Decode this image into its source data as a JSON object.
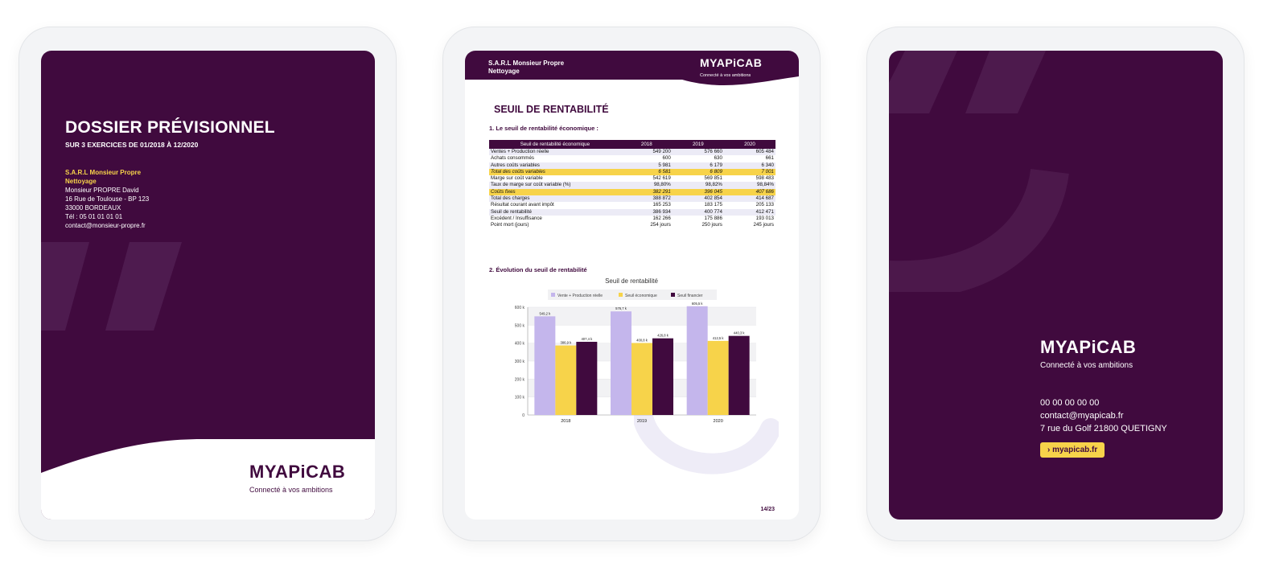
{
  "brand": {
    "logo_text": "MYAPiCAB",
    "tagline": "Connecté à vos ambitions",
    "colors": {
      "primary": "#400a3e",
      "accent": "#f7d34a",
      "lavender": "#c4b6ec"
    }
  },
  "cover": {
    "title": "DOSSIER PRÉVISIONNEL",
    "subtitle": "SUR 3 EXERCICES DE 01/2018 À 12/2020",
    "company_line1": "S.A.R.L Monsieur Propre",
    "company_line2": "Nettoyage",
    "contact_name": "Monsieur PROPRE David",
    "address1": "16 Rue de Toulouse - BP 123",
    "address2": "33000 BORDEAUX",
    "phone": "Tél : 05 01 01 01 01",
    "email": "contact@monsieur-propre.fr"
  },
  "report": {
    "header_company1": "S.A.R.L Monsieur Propre",
    "header_company2": "Nettoyage",
    "section_title": "SEUIL DE RENTABILITÉ",
    "heading1": "1.  Le seuil de rentabilité économique :",
    "heading2": "2.  Évolution du seuil de rentabilité",
    "page_number": "14/23",
    "table": {
      "headers": [
        "Seuil de rentabilité économique",
        "2018",
        "2019",
        "2020"
      ],
      "rows": [
        {
          "label": "Ventes + Production réelle",
          "v": [
            "549 200",
            "576 660",
            "605 484"
          ],
          "style": "alt"
        },
        {
          "label": "Achats consommés",
          "v": [
            "600",
            "630",
            "661"
          ],
          "style": ""
        },
        {
          "label": "Autres coûts variables",
          "v": [
            "5 981",
            "6 179",
            "6 340"
          ],
          "style": "alt"
        },
        {
          "label": "Total des coûts variables",
          "v": [
            "6 581",
            "6 809",
            "7 001"
          ],
          "style": "hl"
        },
        {
          "label": "Marge sur coût variable",
          "v": [
            "542 619",
            "569 851",
            "598 483"
          ],
          "style": ""
        },
        {
          "label": "Taux de marge sur coût variable (%)",
          "v": [
            "98,80%",
            "98,82%",
            "98,84%"
          ],
          "style": "alt"
        },
        {
          "label": "Coûts fixes",
          "v": [
            "382 291",
            "396 045",
            "407 686"
          ],
          "style": "hl"
        },
        {
          "label": "Total des charges",
          "v": [
            "388 872",
            "402 854",
            "414 687"
          ],
          "style": "alt"
        },
        {
          "label": "Résultat courant avant impôt",
          "v": [
            "165 253",
            "183 175",
            "205 133"
          ],
          "style": ""
        },
        {
          "label": "Seuil de rentabilité",
          "v": [
            "386 934",
            "400 774",
            "412 471"
          ],
          "style": "alt"
        },
        {
          "label": "Excédent / Insuffisance",
          "v": [
            "162 266",
            "175 886",
            "193 013"
          ],
          "style": ""
        },
        {
          "label": "Point mort (jours)",
          "v": [
            "254 jours",
            "250 jours",
            "245 jours"
          ],
          "style": ""
        }
      ]
    }
  },
  "chart_data": {
    "type": "bar",
    "title": "Seuil de rentabilité",
    "categories": [
      "2018",
      "2019",
      "2020"
    ],
    "series": [
      {
        "name": "Vente + Production réelle",
        "values": [
          549.2,
          576.7,
          605.5
        ],
        "labels": [
          "549,2 k",
          "576,7 k",
          "605,5 k"
        ],
        "color": "#c4b6ec"
      },
      {
        "name": "Seuil économique",
        "values": [
          386.9,
          400.8,
          412.5
        ],
        "labels": [
          "386,9 k",
          "400,8 k",
          "412,5 k"
        ],
        "color": "#f7d34a"
      },
      {
        "name": "Seuil financier",
        "values": [
          407.4,
          426.8,
          440.3
        ],
        "labels": [
          "407,4 k",
          "426,8 k",
          "440,3 k"
        ],
        "color": "#400a3e"
      }
    ],
    "ylim": [
      0,
      600
    ],
    "yticks": [
      "0",
      "100 k",
      "200 k",
      "300 k",
      "400 k",
      "500 k",
      "600 k"
    ],
    "legend": "top"
  },
  "back": {
    "phone": "00 00 00 00 00",
    "email": "contact@myapicab.fr",
    "address": "7 rue du Golf 21800 QUETIGNY",
    "cta": "›  myapicab.fr"
  }
}
